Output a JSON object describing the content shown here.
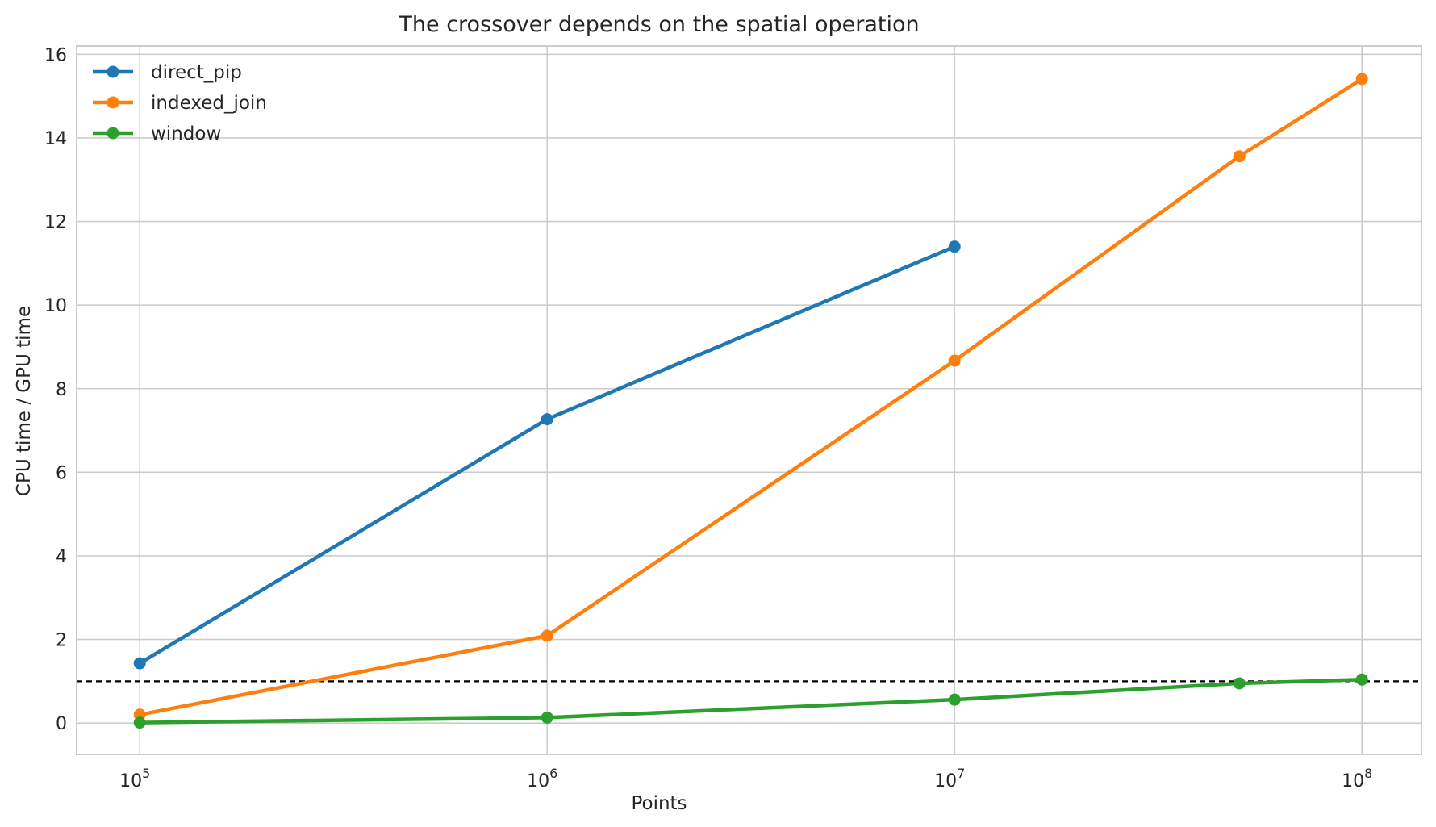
{
  "chart_data": {
    "type": "line",
    "title": "The crossover depends on the spatial operation",
    "xlabel": "Points",
    "ylabel": "CPU time / GPU time",
    "xscale": "log",
    "xlim": [
      70000,
      140000000
    ],
    "ylim": [
      -0.75,
      16.2
    ],
    "xticks": [
      {
        "value": 100000,
        "base": "10",
        "exp": "5"
      },
      {
        "value": 1000000,
        "base": "10",
        "exp": "6"
      },
      {
        "value": 10000000,
        "base": "10",
        "exp": "7"
      },
      {
        "value": 100000000,
        "base": "10",
        "exp": "8"
      }
    ],
    "yticks": [
      0,
      2,
      4,
      6,
      8,
      10,
      12,
      14,
      16
    ],
    "grid": true,
    "legend_position": "top-left",
    "reference_line": {
      "y": 1,
      "style": "dashed",
      "color": "#000000"
    },
    "series": [
      {
        "name": "direct_pip",
        "color": "#1f77b4",
        "x": [
          100000,
          1000000,
          10000000
        ],
        "y": [
          1.43,
          7.27,
          11.4
        ]
      },
      {
        "name": "indexed_join",
        "color": "#ff7f0e",
        "x": [
          100000,
          1000000,
          10000000,
          50000000,
          100000000
        ],
        "y": [
          0.2,
          2.09,
          8.67,
          13.56,
          15.41
        ]
      },
      {
        "name": "window",
        "color": "#2ca02c",
        "x": [
          100000,
          1000000,
          10000000,
          50000000,
          100000000
        ],
        "y": [
          0.01,
          0.13,
          0.56,
          0.95,
          1.04
        ]
      }
    ]
  }
}
